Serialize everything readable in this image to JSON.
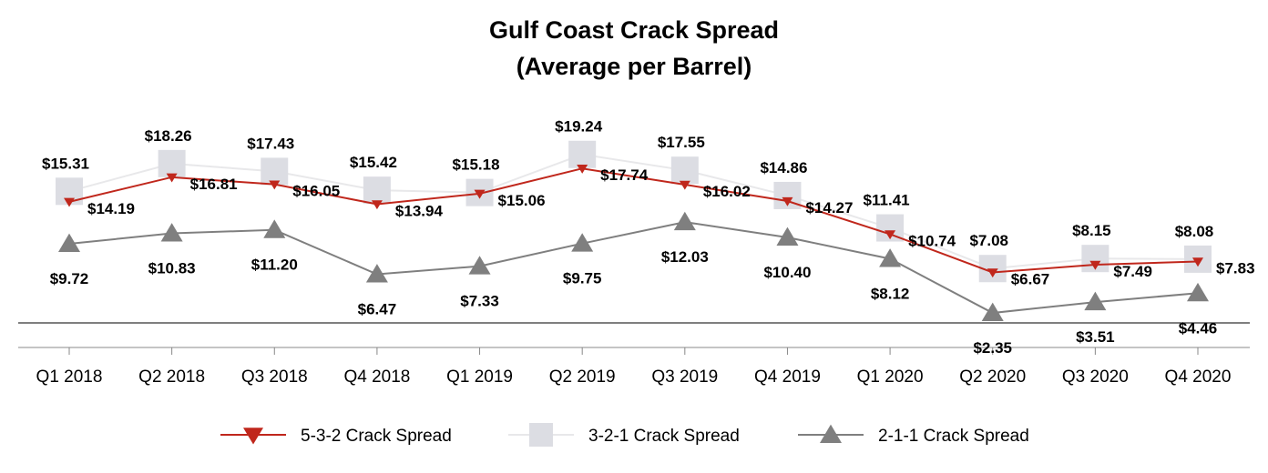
{
  "chart_data": {
    "type": "line",
    "title": "Gulf Coast Crack Spread",
    "subtitle": "(Average per Barrel)",
    "xlabel": "",
    "ylabel": "",
    "categories": [
      "Q1 2018",
      "Q2 2018",
      "Q3 2018",
      "Q4 2018",
      "Q1 2019",
      "Q2 2019",
      "Q3 2019",
      "Q4 2019",
      "Q1 2020",
      "Q2 2020",
      "Q3 2020",
      "Q4 2020"
    ],
    "ylim": [
      0,
      22
    ],
    "grid": false,
    "legend_position": "bottom",
    "series": [
      {
        "name": "5-3-2 Crack Spread",
        "marker": "triangle-down",
        "color": "#c0271c",
        "values": [
          14.19,
          16.81,
          16.05,
          13.94,
          15.06,
          17.74,
          16.02,
          14.27,
          10.74,
          6.67,
          7.49,
          7.83
        ],
        "labels": [
          "$14.19",
          "$16.81",
          "$16.05",
          "$13.94",
          "$15.06",
          "$17.74",
          "$16.02",
          "$14.27",
          "$10.74",
          "$6.67",
          "$7.49",
          "$7.83"
        ]
      },
      {
        "name": "3-2-1 Crack Spread",
        "marker": "square",
        "color": "#dcdde3",
        "line_color": "#e8e8ea",
        "values": [
          15.31,
          18.26,
          17.43,
          15.42,
          15.18,
          19.24,
          17.55,
          14.86,
          11.41,
          7.08,
          8.15,
          8.08
        ],
        "labels": [
          "$15.31",
          "$18.26",
          "$17.43",
          "$15.42",
          "$15.18",
          "$19.24",
          "$17.55",
          "$14.86",
          "$11.41",
          "$7.08",
          "$8.15",
          "$8.08"
        ]
      },
      {
        "name": "2-1-1 Crack Spread",
        "marker": "triangle-up",
        "color": "#7f7f7f",
        "values": [
          9.72,
          10.83,
          11.2,
          6.47,
          7.33,
          9.75,
          12.03,
          10.4,
          8.12,
          2.35,
          3.51,
          4.46
        ],
        "labels": [
          "$9.72",
          "$10.83",
          "$11.20",
          "$6.47",
          "$7.33",
          "$9.75",
          "$12.03",
          "$10.40",
          "$8.12",
          "$2.35",
          "$3.51",
          "$4.46"
        ]
      }
    ]
  }
}
